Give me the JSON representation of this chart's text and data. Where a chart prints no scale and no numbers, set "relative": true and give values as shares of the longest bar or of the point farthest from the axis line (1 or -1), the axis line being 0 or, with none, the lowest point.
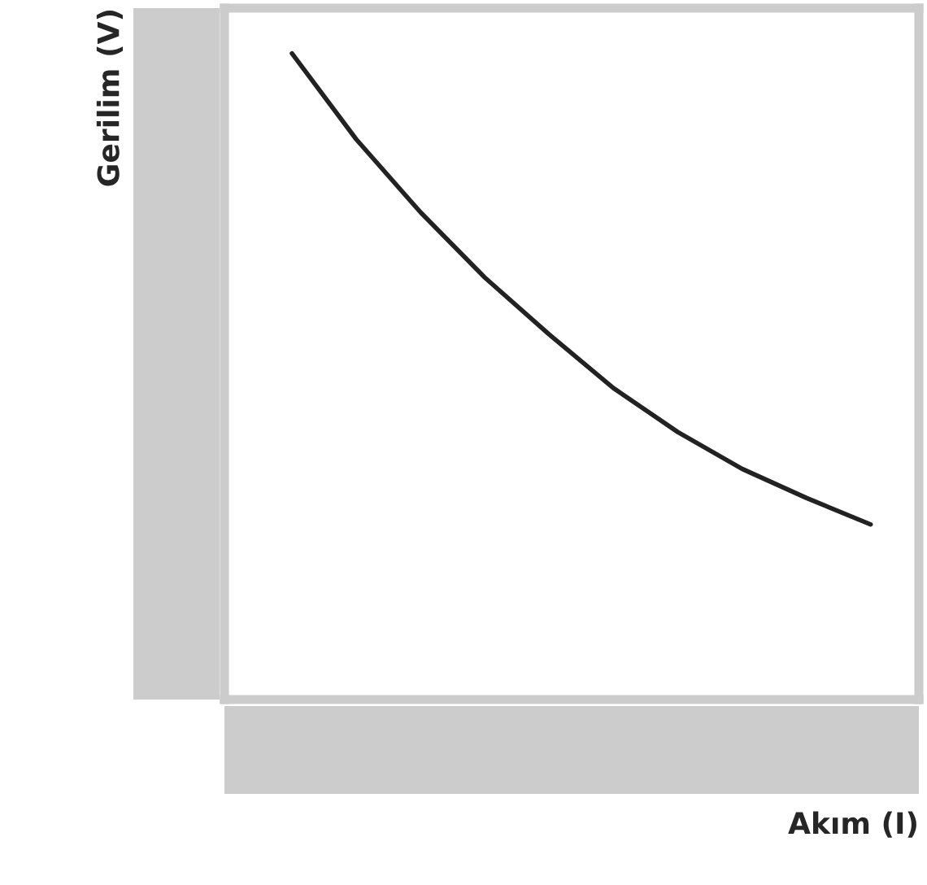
{
  "chart_data": {
    "type": "line",
    "relative": true,
    "xlabel": "Akım (I)",
    "ylabel": "Gerilim (V)",
    "categories": [
      null,
      null,
      null,
      null,
      null,
      null,
      null,
      null,
      null,
      null
    ],
    "series": [
      {
        "color": "#222222",
        "values": [
          1,
          0.867,
          0.754,
          0.653,
          0.565,
          0.482,
          0.414,
          0.357,
          0.312,
          0.271
        ]
      }
    ],
    "marker": "none",
    "line_style": "solid",
    "grid": false,
    "legend": false
  }
}
